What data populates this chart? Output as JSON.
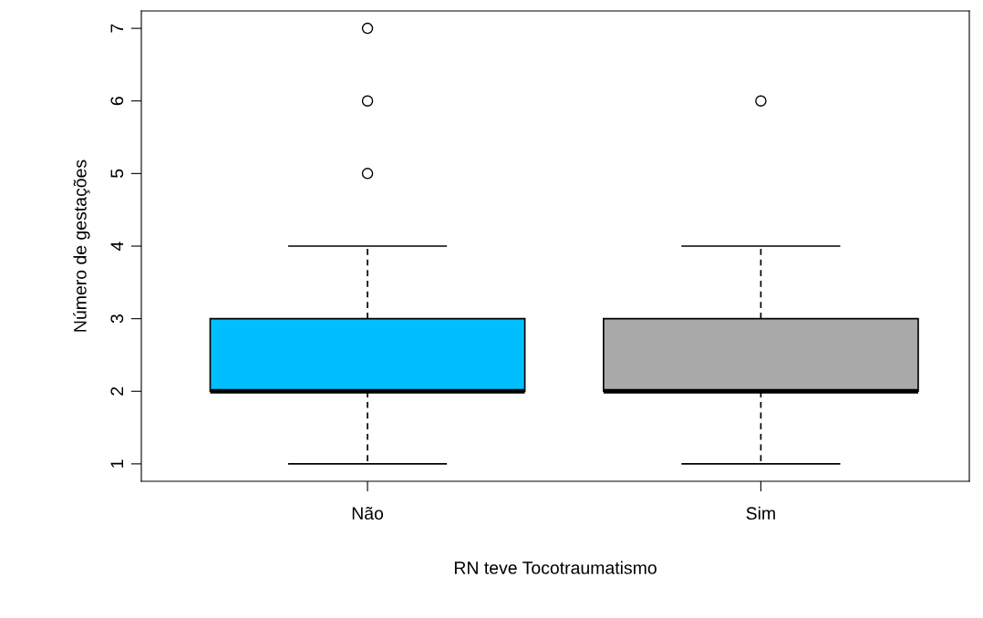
{
  "chart_data": {
    "type": "box",
    "xlabel": "RN teve Tocotraumatismo",
    "ylabel": "Número de gestações",
    "categories": [
      "Não",
      "Sim"
    ],
    "colors": [
      "#00bfff",
      "#a9a9a9"
    ],
    "boxes": [
      {
        "low": 1,
        "q1": 2,
        "median": 2,
        "q3": 3,
        "high": 4,
        "outliers": [
          5,
          6,
          7
        ]
      },
      {
        "low": 1,
        "q1": 2,
        "median": 2,
        "q3": 3,
        "high": 4,
        "outliers": [
          6
        ]
      }
    ],
    "ylim": [
      0.76,
      7.24
    ],
    "yticks": [
      1,
      2,
      3,
      4,
      5,
      6,
      7
    ]
  }
}
